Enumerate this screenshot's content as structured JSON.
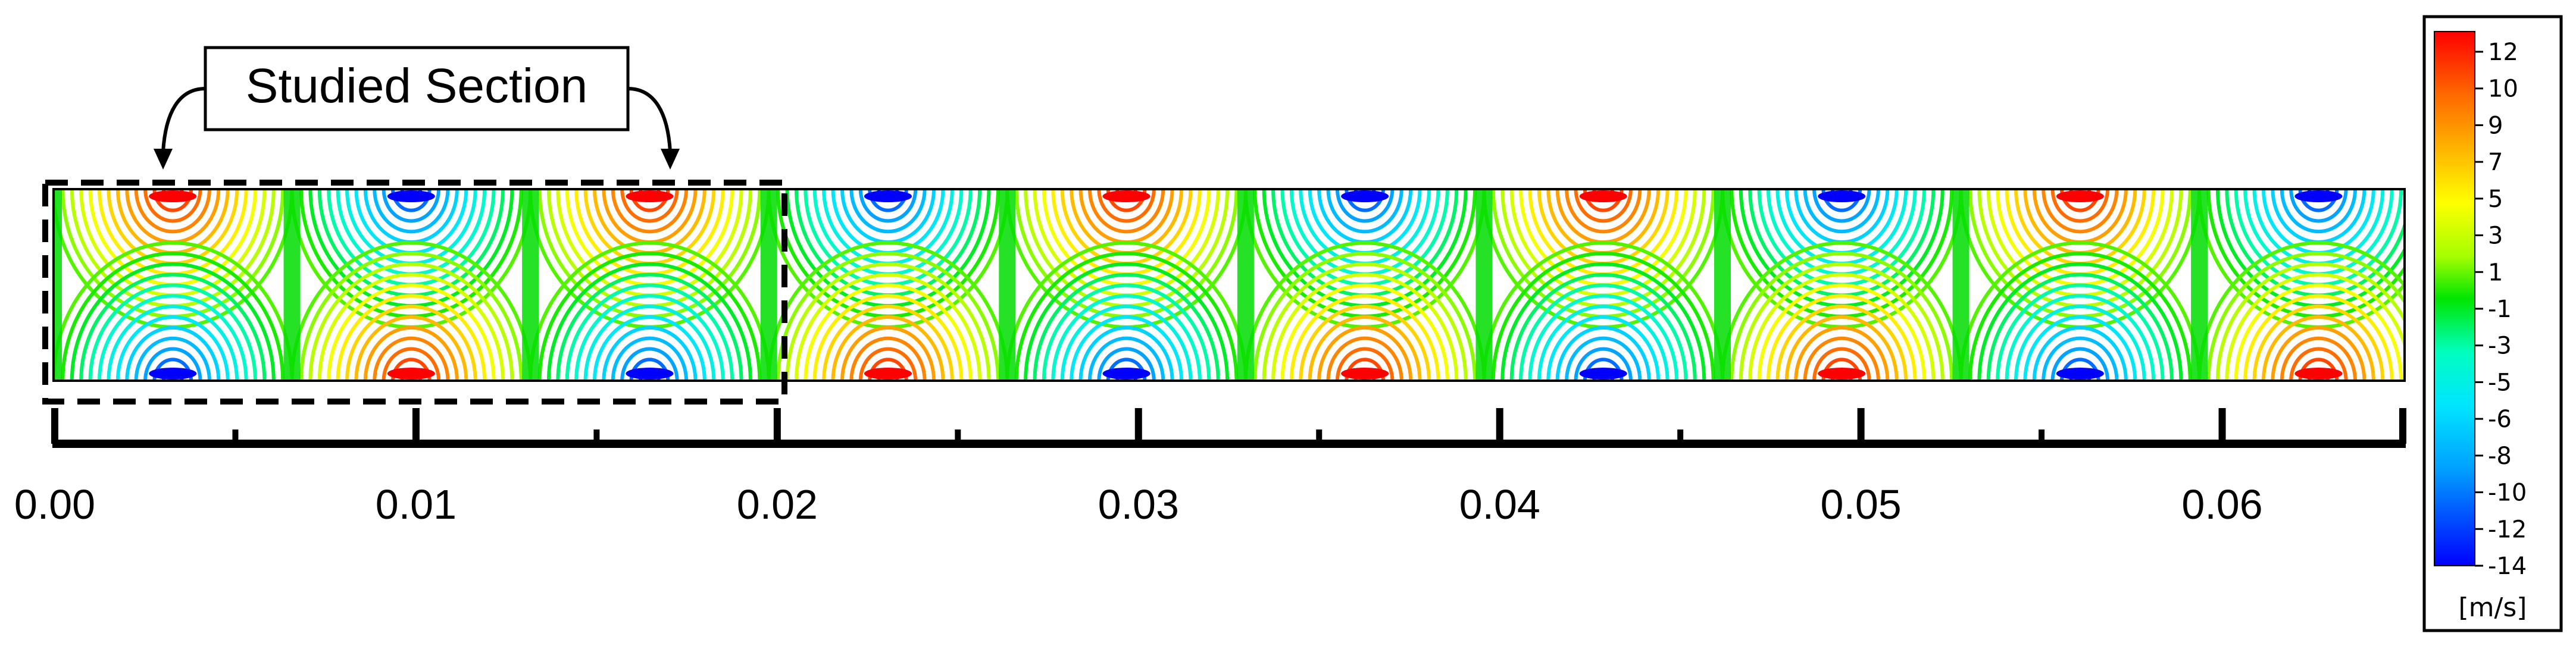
{
  "callout": {
    "label": "Studied Section"
  },
  "axis": {
    "major_ticks": [
      0.0,
      0.01,
      0.02,
      0.03,
      0.04,
      0.05,
      0.06
    ],
    "major_labels": [
      "0.00",
      "0.01",
      "0.02",
      "0.03",
      "0.04",
      "0.05",
      "0.06"
    ],
    "minor_ticks": [
      0.005,
      0.015,
      0.025,
      0.035,
      0.045,
      0.055
    ],
    "range": [
      0.0,
      0.065
    ]
  },
  "colorbar": {
    "unit": "[m/s]",
    "labels": [
      "12",
      "10",
      "9",
      "7",
      "5",
      "3",
      "1",
      "-1",
      "-3",
      "-5",
      "-6",
      "-8",
      "-10",
      "-12",
      "-14"
    ],
    "range": [
      -14,
      13
    ],
    "colors": [
      "#ff0000",
      "#ff6a00",
      "#ffb400",
      "#ffff00",
      "#a6ff00",
      "#00e600",
      "#00ffbf",
      "#00e5ff",
      "#00a0ff",
      "#0000ff"
    ]
  },
  "field": {
    "description_hidden": false,
    "studied_section_range": [
      0.0,
      0.02
    ],
    "cell_period": 0.0066
  }
}
